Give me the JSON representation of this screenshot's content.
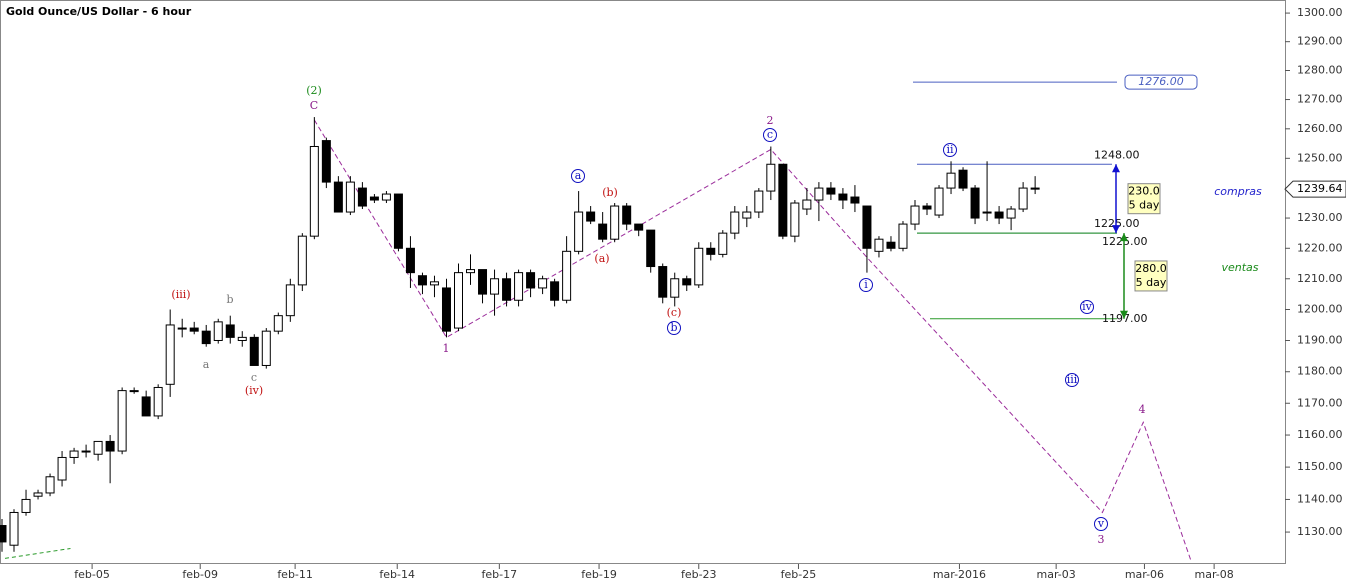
{
  "chart_data": {
    "type": "candlestick",
    "title": "Gold Ounce/US Dollar - 6 hour",
    "log_scale": true,
    "x": [
      0,
      1,
      2,
      3,
      4,
      5,
      6,
      7,
      8,
      9,
      10,
      11,
      12,
      13,
      14,
      15,
      16,
      17,
      18,
      19,
      20,
      21,
      22,
      23,
      24,
      25,
      26,
      27,
      28,
      29,
      30,
      31,
      32,
      33,
      34,
      35,
      36,
      37,
      38,
      39,
      40,
      41,
      42,
      43,
      44,
      45,
      46,
      47,
      48,
      49,
      50,
      51,
      52,
      53,
      54,
      55,
      56,
      57,
      58,
      59,
      60,
      61,
      62,
      63,
      64,
      65,
      66,
      67,
      68,
      69,
      70,
      71,
      72,
      73,
      74,
      75,
      76,
      77,
      78,
      79,
      80,
      81,
      82,
      83,
      84,
      85,
      86
    ],
    "open": [
      1132,
      1126,
      1136,
      1141,
      1142,
      1146,
      1153,
      1155,
      1154,
      1158,
      1155,
      1174,
      1172,
      1166,
      1176,
      1194,
      1194,
      1193,
      1190,
      1195,
      1190,
      1191,
      1182,
      1193,
      1198,
      1208,
      1224,
      1256,
      1242,
      1232,
      1240,
      1237,
      1236,
      1238,
      1220,
      1211,
      1208,
      1207,
      1194,
      1212,
      1213,
      1205,
      1210,
      1203,
      1212,
      1207,
      1209,
      1203,
      1219,
      1232,
      1228,
      1223,
      1234,
      1228,
      1226,
      1214,
      1204,
      1210,
      1208,
      1220,
      1218,
      1225,
      1230,
      1232,
      1239,
      1248,
      1224,
      1233,
      1236,
      1240,
      1238,
      1237,
      1234,
      1219,
      1222,
      1220,
      1228,
      1234,
      1231,
      1240,
      1246,
      1240,
      1232,
      1232,
      1230,
      1233,
      1240
    ],
    "high": [
      1134,
      1137,
      1143,
      1143,
      1148,
      1155,
      1156,
      1157,
      1158,
      1160,
      1175,
      1175,
      1174,
      1176,
      1200,
      1197,
      1196,
      1195,
      1197,
      1198,
      1193,
      1192,
      1194,
      1199,
      1210,
      1225,
      1264,
      1257,
      1244,
      1244,
      1242,
      1238,
      1239,
      1238,
      1224,
      1212,
      1211,
      1210,
      1215,
      1218,
      1213,
      1213,
      1212,
      1213,
      1213,
      1211,
      1210,
      1224,
      1239,
      1234,
      1232,
      1235,
      1235,
      1228,
      1226,
      1215,
      1212,
      1211,
      1222,
      1222,
      1226,
      1234,
      1234,
      1240,
      1254,
      1248,
      1236,
      1240,
      1242,
      1242,
      1240,
      1241,
      1234,
      1224,
      1224,
      1229,
      1236,
      1235,
      1241,
      1249,
      1247,
      1241,
      1249,
      1234,
      1234,
      1242,
      1244
    ],
    "low": [
      1124,
      1124,
      1135,
      1140,
      1141,
      1144,
      1151,
      1153,
      1152,
      1145,
      1154,
      1173,
      1166,
      1165,
      1172,
      1191,
      1192,
      1188,
      1189,
      1189,
      1188,
      1182,
      1181,
      1192,
      1196,
      1206,
      1223,
      1240,
      1232,
      1231,
      1233,
      1235,
      1235,
      1219,
      1207,
      1205,
      1204,
      1191,
      1193,
      1208,
      1202,
      1198,
      1201,
      1201,
      1204,
      1205,
      1201,
      1202,
      1218,
      1228,
      1222,
      1222,
      1226,
      1224,
      1212,
      1202,
      1201,
      1206,
      1207,
      1216,
      1217,
      1223,
      1227,
      1230,
      1236,
      1223,
      1222,
      1231,
      1229,
      1236,
      1233,
      1232,
      1212,
      1217,
      1219,
      1219,
      1226,
      1231,
      1230,
      1238,
      1239,
      1228,
      1229,
      1228,
      1226,
      1232,
      1238
    ],
    "close": [
      1127,
      1136,
      1140,
      1142,
      1147,
      1153,
      1155,
      1155,
      1158,
      1155,
      1174,
      1174,
      1166,
      1175,
      1195,
      1194,
      1193,
      1189,
      1196,
      1191,
      1191,
      1182,
      1193,
      1198,
      1208,
      1224,
      1254,
      1242,
      1232,
      1242,
      1234,
      1236,
      1238,
      1220,
      1212,
      1208,
      1209,
      1193,
      1212,
      1213,
      1205,
      1210,
      1203,
      1212,
      1207,
      1210,
      1203,
      1219,
      1232,
      1229,
      1223,
      1234,
      1228,
      1226,
      1214,
      1204,
      1210,
      1208,
      1220,
      1218,
      1225,
      1232,
      1232,
      1239,
      1248,
      1224,
      1235,
      1236,
      1240,
      1238,
      1236,
      1235,
      1220,
      1223,
      1220,
      1228,
      1234,
      1233,
      1240,
      1245,
      1240,
      1230,
      1232,
      1230,
      1233,
      1240,
      1239.64
    ],
    "xlim": [
      0,
      106.8
    ],
    "xticks": [
      {
        "value": 7.5,
        "label": "feb-05"
      },
      {
        "value": 16.5,
        "label": "feb-09"
      },
      {
        "value": 24.4,
        "label": "feb-11"
      },
      {
        "value": 32.9,
        "label": "feb-14"
      },
      {
        "value": 41.4,
        "label": "feb-17"
      },
      {
        "value": 49.7,
        "label": "feb-19"
      },
      {
        "value": 58,
        "label": "feb-23"
      },
      {
        "value": 66.3,
        "label": "feb-25"
      },
      {
        "value": 79.7,
        "label": "mar-2016"
      },
      {
        "value": 87.75,
        "label": "mar-03"
      },
      {
        "value": 95.1,
        "label": "mar-06"
      },
      {
        "value": 100.9,
        "label": "mar-08"
      }
    ],
    "ylim": [
      1120.3,
      1304.6
    ],
    "yticks": [
      {
        "value": 1130,
        "label": "1130.00"
      },
      {
        "value": 1140,
        "label": "1140.00"
      },
      {
        "value": 1150,
        "label": "1150.00"
      },
      {
        "value": 1160,
        "label": "1160.00"
      },
      {
        "value": 1170,
        "label": "1170.00"
      },
      {
        "value": 1180,
        "label": "1180.00"
      },
      {
        "value": 1190,
        "label": "1190.00"
      },
      {
        "value": 1200,
        "label": "1200.00"
      },
      {
        "value": 1210,
        "label": "1210.00"
      },
      {
        "value": 1220,
        "label": "1220.00"
      },
      {
        "value": 1230,
        "label": "1230.00"
      },
      {
        "value": 1240,
        "label": "1240.00"
      },
      {
        "value": 1250,
        "label": "1250.00"
      },
      {
        "value": 1260,
        "label": "1260.00"
      },
      {
        "value": 1270,
        "label": "1270.00"
      },
      {
        "value": 1280,
        "label": "1280.00"
      },
      {
        "value": 1290,
        "label": "1290.00"
      },
      {
        "value": 1300,
        "label": "1300.00"
      }
    ],
    "last_price": {
      "value": 1239.64,
      "label": "1239.64"
    },
    "levels": [
      {
        "value": 1276,
        "label": "1276.00"
      },
      {
        "value": 1248,
        "label": "1248.00"
      },
      {
        "value": 1225,
        "label": "1225.00"
      },
      {
        "value": 1225,
        "label": "1225.00"
      },
      {
        "value": 1197,
        "label": "1197.00"
      }
    ],
    "boxes": [
      [
        "230.0",
        "5 day"
      ],
      [
        "280.0",
        "5 day"
      ]
    ],
    "side_labels": [
      "compras",
      "ventas"
    ],
    "wave_path": {
      "x": [
        26,
        37,
        64,
        72,
        91.6,
        95,
        99
      ],
      "y": [
        1263,
        1191,
        1253,
        1217,
        1136,
        1164,
        1121
      ]
    },
    "trend_line": {
      "x": [
        0.25,
        5.7
      ],
      "y": [
        1122,
        1125
      ]
    },
    "wave_labels": [
      "(2)",
      "C",
      "(iii)",
      "b",
      "a",
      "c",
      "(iv)",
      "1",
      "a",
      "(b)",
      "(a)",
      "(c)",
      "b",
      "2",
      "c",
      "ii",
      "i",
      "iv",
      "iii",
      "4",
      "v",
      "3"
    ]
  }
}
